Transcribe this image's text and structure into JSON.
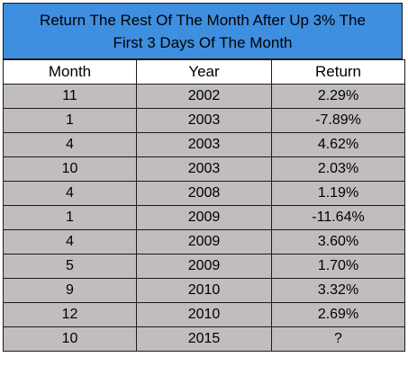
{
  "title": {
    "line1": "Return The Rest Of The Month After Up 3% The",
    "line2": "First 3 Days Of The Month"
  },
  "table": {
    "headers": [
      "Month",
      "Year",
      "Return"
    ],
    "rows": [
      [
        "11",
        "2002",
        "2.29%"
      ],
      [
        "1",
        "2003",
        "-7.89%"
      ],
      [
        "4",
        "2003",
        "4.62%"
      ],
      [
        "10",
        "2003",
        "2.03%"
      ],
      [
        "4",
        "2008",
        "1.19%"
      ],
      [
        "1",
        "2009",
        "-11.64%"
      ],
      [
        "4",
        "2009",
        "3.60%"
      ],
      [
        "5",
        "2009",
        "1.70%"
      ],
      [
        "9",
        "2010",
        "3.32%"
      ],
      [
        "12",
        "2010",
        "2.69%"
      ],
      [
        "10",
        "2015",
        "?"
      ]
    ]
  },
  "colors": {
    "title_bg": "#3f8fe0",
    "row_bg": "#c1bdbd",
    "border": "#1a1a1a"
  }
}
